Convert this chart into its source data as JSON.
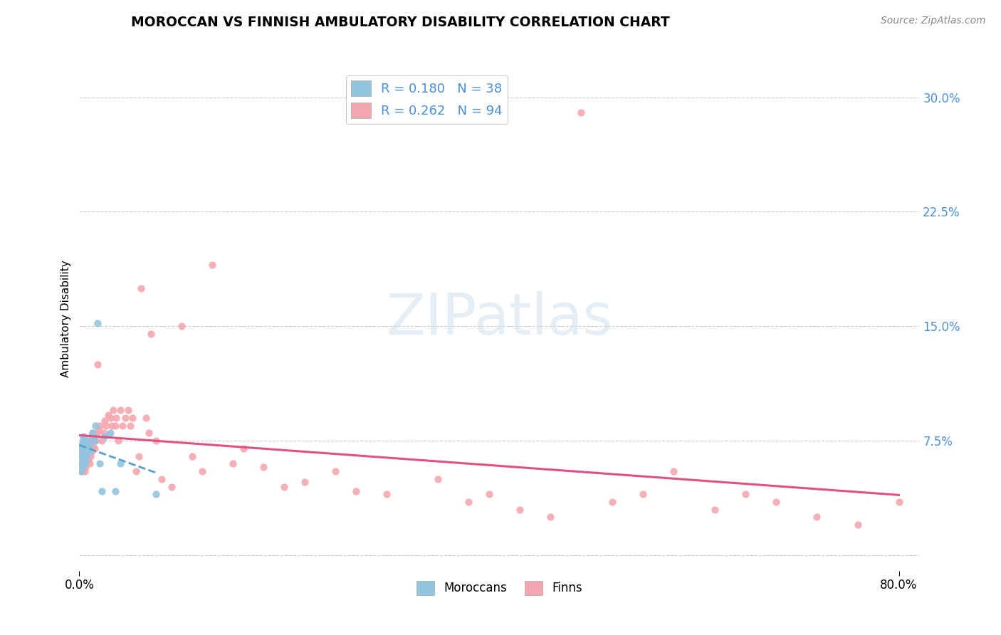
{
  "title": "MOROCCAN VS FINNISH AMBULATORY DISABILITY CORRELATION CHART",
  "source": "Source: ZipAtlas.com",
  "ylabel": "Ambulatory Disability",
  "legend_moroccan": "R = 0.180   N = 38",
  "legend_finn": "R = 0.262   N = 94",
  "legend_moroccan_label": "Moroccans",
  "legend_finn_label": "Finns",
  "moroccan_color": "#92c5de",
  "finn_color": "#f4a6b0",
  "moroccan_line_color": "#5b9ec9",
  "finn_line_color": "#e05080",
  "watermark": "ZIPatlas",
  "xlim_min": 0.0,
  "xlim_max": 0.82,
  "ylim_min": -0.01,
  "ylim_max": 0.32,
  "ytick_vals": [
    0.0,
    0.075,
    0.15,
    0.225,
    0.3
  ],
  "ytick_labels": [
    "",
    "7.5%",
    "15.0%",
    "22.5%",
    "30.0%"
  ],
  "moroccan_x": [
    0.001,
    0.001,
    0.002,
    0.002,
    0.002,
    0.003,
    0.003,
    0.003,
    0.004,
    0.004,
    0.004,
    0.004,
    0.005,
    0.005,
    0.005,
    0.005,
    0.006,
    0.006,
    0.007,
    0.007,
    0.007,
    0.008,
    0.008,
    0.009,
    0.01,
    0.01,
    0.012,
    0.013,
    0.015,
    0.016,
    0.018,
    0.02,
    0.022,
    0.025,
    0.03,
    0.035,
    0.04,
    0.075
  ],
  "moroccan_y": [
    0.06,
    0.065,
    0.055,
    0.068,
    0.072,
    0.058,
    0.07,
    0.075,
    0.062,
    0.066,
    0.072,
    0.078,
    0.06,
    0.065,
    0.07,
    0.075,
    0.062,
    0.068,
    0.065,
    0.07,
    0.075,
    0.068,
    0.072,
    0.07,
    0.068,
    0.073,
    0.078,
    0.08,
    0.075,
    0.085,
    0.152,
    0.06,
    0.042,
    0.078,
    0.08,
    0.042,
    0.06,
    0.04
  ],
  "finn_x": [
    0.001,
    0.001,
    0.002,
    0.002,
    0.002,
    0.003,
    0.003,
    0.004,
    0.004,
    0.004,
    0.005,
    0.005,
    0.005,
    0.006,
    0.006,
    0.006,
    0.007,
    0.007,
    0.007,
    0.008,
    0.008,
    0.008,
    0.009,
    0.009,
    0.01,
    0.01,
    0.01,
    0.011,
    0.011,
    0.012,
    0.012,
    0.013,
    0.013,
    0.014,
    0.015,
    0.015,
    0.016,
    0.017,
    0.018,
    0.019,
    0.02,
    0.022,
    0.024,
    0.025,
    0.026,
    0.028,
    0.03,
    0.032,
    0.033,
    0.035,
    0.036,
    0.038,
    0.04,
    0.042,
    0.045,
    0.048,
    0.05,
    0.052,
    0.055,
    0.058,
    0.06,
    0.065,
    0.068,
    0.07,
    0.075,
    0.08,
    0.09,
    0.1,
    0.11,
    0.12,
    0.13,
    0.15,
    0.16,
    0.18,
    0.2,
    0.22,
    0.25,
    0.27,
    0.3,
    0.35,
    0.38,
    0.4,
    0.43,
    0.46,
    0.49,
    0.52,
    0.55,
    0.58,
    0.62,
    0.65,
    0.68,
    0.72,
    0.76,
    0.8
  ],
  "finn_y": [
    0.06,
    0.07,
    0.055,
    0.065,
    0.072,
    0.058,
    0.068,
    0.06,
    0.066,
    0.074,
    0.055,
    0.062,
    0.07,
    0.058,
    0.064,
    0.072,
    0.06,
    0.066,
    0.074,
    0.062,
    0.068,
    0.075,
    0.063,
    0.07,
    0.06,
    0.068,
    0.075,
    0.065,
    0.072,
    0.068,
    0.075,
    0.072,
    0.08,
    0.078,
    0.07,
    0.078,
    0.075,
    0.08,
    0.125,
    0.082,
    0.085,
    0.075,
    0.08,
    0.088,
    0.085,
    0.092,
    0.09,
    0.085,
    0.095,
    0.085,
    0.09,
    0.075,
    0.095,
    0.085,
    0.09,
    0.095,
    0.085,
    0.09,
    0.055,
    0.065,
    0.175,
    0.09,
    0.08,
    0.145,
    0.075,
    0.05,
    0.045,
    0.15,
    0.065,
    0.055,
    0.19,
    0.06,
    0.07,
    0.058,
    0.045,
    0.048,
    0.055,
    0.042,
    0.04,
    0.05,
    0.035,
    0.04,
    0.03,
    0.025,
    0.29,
    0.035,
    0.04,
    0.055,
    0.03,
    0.04,
    0.035,
    0.025,
    0.02,
    0.035
  ]
}
